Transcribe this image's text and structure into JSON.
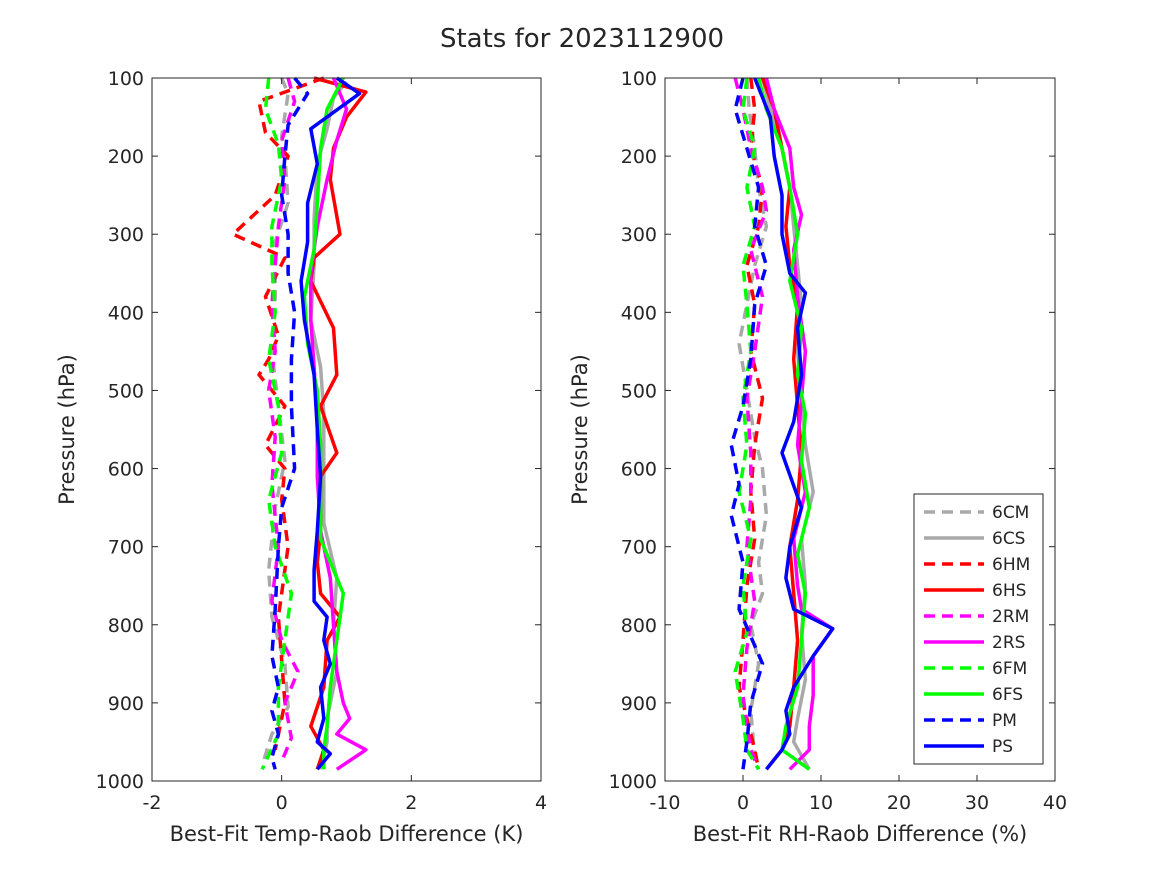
{
  "chart_data": [
    {
      "type": "line",
      "title": "Stats for 2023112900",
      "xlabel": "Best-Fit Temp-Raob Difference (K)",
      "ylabel": "Pressure (hPa)",
      "xlim": [
        -2,
        4
      ],
      "ylim": [
        1000,
        100
      ],
      "xticks": [
        "-2",
        "0",
        "2",
        "4"
      ],
      "yticks": [
        "100",
        "200",
        "300",
        "400",
        "500",
        "600",
        "700",
        "800",
        "900",
        "1000"
      ],
      "grid": false,
      "series": [
        {
          "name": "6CM",
          "color": "#a9a9a9",
          "dash": true,
          "x": [
            0.0,
            0.1,
            0.0,
            0.05,
            0.1,
            -0.1,
            -0.1,
            -0.15,
            -0.05,
            0.05,
            -0.1,
            -0.2,
            -0.15,
            0.05,
            0.1,
            -0.15,
            -0.3
          ],
          "y": [
            100,
            120,
            175,
            200,
            260,
            310,
            380,
            450,
            520,
            590,
            650,
            730,
            790,
            850,
            905,
            940,
            980
          ]
        },
        {
          "name": "6CS",
          "color": "#a9a9a9",
          "dash": false,
          "x": [
            1.0,
            0.8,
            0.7,
            0.55,
            0.5,
            0.5,
            0.45,
            0.6,
            0.65,
            0.65,
            0.65,
            0.85,
            0.8,
            0.85,
            0.7,
            0.7,
            0.6
          ],
          "y": [
            105,
            125,
            165,
            210,
            280,
            340,
            410,
            470,
            530,
            600,
            670,
            740,
            800,
            860,
            920,
            950,
            985
          ]
        },
        {
          "name": "6HM",
          "color": "#ff0000",
          "dash": true,
          "x": [
            0.65,
            -0.35,
            -0.25,
            0.1,
            -0.1,
            -0.75,
            0.05,
            -0.25,
            -0.05,
            -0.2,
            -0.35,
            0.05,
            -0.25,
            0.05,
            0.0,
            0.1,
            -0.05,
            0.05,
            -0.1
          ],
          "y": [
            100,
            130,
            170,
            200,
            250,
            300,
            330,
            380,
            430,
            460,
            480,
            520,
            570,
            600,
            640,
            700,
            790,
            900,
            960
          ]
        },
        {
          "name": "6HS",
          "color": "#ff0000",
          "dash": false,
          "x": [
            0.5,
            1.3,
            1.0,
            0.8,
            0.75,
            0.9,
            0.5,
            0.45,
            0.8,
            0.85,
            0.6,
            0.85,
            0.6,
            0.6,
            0.55,
            0.6,
            0.9,
            0.7,
            0.65,
            0.45,
            0.65,
            0.55
          ],
          "y": [
            100,
            118,
            150,
            190,
            230,
            300,
            330,
            360,
            420,
            480,
            520,
            580,
            610,
            680,
            720,
            760,
            790,
            820,
            880,
            930,
            960,
            985
          ]
        },
        {
          "name": "2RM",
          "color": "#ff00ff",
          "dash": true,
          "x": [
            0.1,
            0.2,
            0.0,
            0.05,
            -0.05,
            -0.1,
            -0.15,
            -0.1,
            -0.2,
            -0.1,
            -0.15,
            -0.05,
            -0.15,
            0.0,
            0.25,
            0.05,
            0.15,
            0.0
          ],
          "y": [
            100,
            130,
            180,
            230,
            290,
            340,
            390,
            450,
            500,
            560,
            620,
            700,
            770,
            820,
            860,
            900,
            945,
            975
          ]
        },
        {
          "name": "2RS",
          "color": "#ff00ff",
          "dash": false,
          "x": [
            0.8,
            1.0,
            0.85,
            0.7,
            0.55,
            0.45,
            0.45,
            0.5,
            0.55,
            0.55,
            0.6,
            0.75,
            0.8,
            0.85,
            0.95,
            1.05,
            0.85,
            1.3,
            0.85
          ],
          "y": [
            100,
            140,
            180,
            230,
            290,
            350,
            410,
            470,
            540,
            610,
            680,
            740,
            800,
            860,
            900,
            920,
            940,
            960,
            985
          ]
        },
        {
          "name": "6FM",
          "color": "#00ff00",
          "dash": true,
          "x": [
            -0.2,
            -0.25,
            -0.05,
            0.0,
            -0.15,
            -0.15,
            -0.1,
            -0.2,
            -0.05,
            0.0,
            -0.2,
            -0.1,
            0.15,
            0.05,
            -0.05,
            -0.05,
            -0.3
          ],
          "y": [
            100,
            140,
            185,
            230,
            290,
            340,
            400,
            460,
            520,
            580,
            640,
            700,
            760,
            820,
            880,
            940,
            985
          ]
        },
        {
          "name": "6FS",
          "color": "#00ff00",
          "dash": false,
          "x": [
            0.95,
            0.7,
            0.6,
            0.55,
            0.5,
            0.35,
            0.4,
            0.55,
            0.6,
            0.6,
            0.6,
            0.8,
            0.95,
            0.85,
            0.75,
            0.7,
            0.65,
            0.65
          ],
          "y": [
            100,
            140,
            190,
            260,
            320,
            380,
            440,
            500,
            570,
            630,
            690,
            730,
            760,
            820,
            880,
            930,
            960,
            985
          ]
        },
        {
          "name": "PM",
          "color": "#0000ff",
          "dash": true,
          "x": [
            0.2,
            0.4,
            0.1,
            0.05,
            0.0,
            0.1,
            0.1,
            0.2,
            0.15,
            0.15,
            0.2,
            0.0,
            -0.05,
            -0.1,
            -0.15,
            -0.05,
            -0.15,
            -0.05,
            -0.15,
            -0.1
          ],
          "y": [
            100,
            120,
            160,
            200,
            250,
            300,
            350,
            400,
            460,
            520,
            600,
            650,
            700,
            780,
            840,
            880,
            910,
            940,
            970,
            985
          ]
        },
        {
          "name": "PS",
          "color": "#0000ff",
          "dash": false,
          "x": [
            0.85,
            1.2,
            0.45,
            0.55,
            0.4,
            0.4,
            0.3,
            0.35,
            0.5,
            0.55,
            0.6,
            0.55,
            0.5,
            0.5,
            0.7,
            0.65,
            0.75,
            0.6,
            0.65,
            0.55,
            0.75,
            0.55
          ],
          "y": [
            100,
            120,
            165,
            210,
            260,
            310,
            360,
            410,
            480,
            550,
            610,
            680,
            730,
            770,
            790,
            820,
            850,
            880,
            920,
            950,
            965,
            985
          ]
        }
      ]
    },
    {
      "type": "line",
      "xlabel": "Best-Fit RH-Raob Difference (%)",
      "ylabel": "Pressure (hPa)",
      "xlim": [
        -10,
        40
      ],
      "ylim": [
        1000,
        100
      ],
      "xticks": [
        "-10",
        "0",
        "10",
        "20",
        "30",
        "40"
      ],
      "yticks": [
        "100",
        "200",
        "300",
        "400",
        "500",
        "600",
        "700",
        "800",
        "900",
        "1000"
      ],
      "grid": false,
      "legend_position": "bottom-right",
      "series": [
        {
          "name": "6CM",
          "color": "#a9a9a9",
          "dash": true,
          "x": [
            0.5,
            0.8,
            1.5,
            2.0,
            3.0,
            1.5,
            0.5,
            -0.5,
            0.5,
            1.5,
            2.5,
            3.0,
            2.0,
            2.5,
            1.0,
            2.0,
            1.0,
            1.5
          ],
          "y": [
            100,
            140,
            190,
            240,
            290,
            340,
            390,
            440,
            500,
            560,
            600,
            660,
            720,
            760,
            800,
            850,
            910,
            970
          ]
        },
        {
          "name": "6CS",
          "color": "#a9a9a9",
          "dash": false,
          "x": [
            2.5,
            3.5,
            5.0,
            6.0,
            6.5,
            7.0,
            7.5,
            7.0,
            7.5,
            8.0,
            9.0,
            7.5,
            8.0,
            7.5,
            8.0,
            7.0,
            6.5,
            8.5
          ],
          "y": [
            100,
            140,
            190,
            240,
            290,
            340,
            390,
            450,
            510,
            570,
            630,
            690,
            750,
            810,
            870,
            920,
            950,
            985
          ]
        },
        {
          "name": "6HM",
          "color": "#ff0000",
          "dash": true,
          "x": [
            1.0,
            1.5,
            1.0,
            2.5,
            2.0,
            0.5,
            1.5,
            1.0,
            2.5,
            1.5,
            1.0,
            1.5,
            0.5,
            0.0,
            -0.5,
            0.5,
            1.5,
            2.0
          ],
          "y": [
            100,
            140,
            190,
            240,
            290,
            340,
            390,
            450,
            510,
            570,
            630,
            690,
            750,
            820,
            880,
            920,
            960,
            985
          ]
        },
        {
          "name": "6HS",
          "color": "#ff0000",
          "dash": false,
          "x": [
            2.5,
            4.0,
            5.0,
            6.0,
            5.5,
            6.0,
            7.0,
            6.5,
            7.0,
            7.5,
            7.0,
            6.0,
            6.5,
            7.0,
            6.5,
            6.0,
            5.0,
            3.0
          ],
          "y": [
            100,
            140,
            190,
            240,
            290,
            340,
            390,
            460,
            520,
            580,
            640,
            700,
            760,
            820,
            880,
            930,
            960,
            985
          ]
        },
        {
          "name": "2RM",
          "color": "#ff00ff",
          "dash": true,
          "x": [
            -1.0,
            0.0,
            1.0,
            2.5,
            3.0,
            1.0,
            2.5,
            1.5,
            0.5,
            1.0,
            1.0,
            0.5,
            1.5,
            0.5,
            0.0,
            0.5,
            1.0,
            2.0
          ],
          "y": [
            100,
            140,
            190,
            240,
            270,
            320,
            380,
            450,
            510,
            580,
            640,
            700,
            770,
            830,
            890,
            930,
            960,
            985
          ]
        },
        {
          "name": "2RS",
          "color": "#ff00ff",
          "dash": false,
          "x": [
            3.0,
            4.0,
            6.0,
            6.5,
            7.5,
            6.5,
            7.0,
            8.0,
            7.5,
            7.0,
            8.0,
            6.5,
            7.0,
            7.5,
            11.5,
            9.0,
            9.0,
            8.5,
            8.5,
            6.0
          ],
          "y": [
            100,
            140,
            190,
            240,
            275,
            320,
            380,
            450,
            510,
            570,
            630,
            690,
            750,
            780,
            805,
            840,
            890,
            930,
            960,
            985
          ]
        },
        {
          "name": "6FM",
          "color": "#00ff00",
          "dash": true,
          "x": [
            0.5,
            0.0,
            1.5,
            0.5,
            1.5,
            0.0,
            0.5,
            1.0,
            0.0,
            0.5,
            -0.5,
            1.0,
            0.0,
            0.5,
            -1.0,
            0.0,
            0.5,
            2.0
          ],
          "y": [
            100,
            140,
            190,
            240,
            290,
            340,
            390,
            450,
            510,
            570,
            630,
            690,
            750,
            810,
            860,
            920,
            960,
            985
          ]
        },
        {
          "name": "6FS",
          "color": "#00ff00",
          "dash": false,
          "x": [
            2.0,
            3.0,
            5.0,
            6.0,
            7.0,
            6.0,
            7.5,
            7.0,
            8.0,
            7.5,
            8.5,
            7.0,
            8.0,
            7.5,
            7.0,
            5.5,
            5.0,
            8.5
          ],
          "y": [
            100,
            140,
            190,
            240,
            300,
            360,
            420,
            480,
            530,
            590,
            650,
            710,
            760,
            820,
            880,
            930,
            960,
            985
          ]
        },
        {
          "name": "PM",
          "color": "#0000ff",
          "dash": true,
          "x": [
            0.0,
            -1.0,
            0.5,
            2.0,
            1.5,
            3.0,
            1.5,
            1.0,
            0.0,
            -1.5,
            -0.5,
            -1.5,
            0.0,
            -0.5,
            2.5,
            1.0,
            0.5,
            0.0
          ],
          "y": [
            100,
            140,
            190,
            240,
            290,
            340,
            390,
            460,
            520,
            570,
            620,
            660,
            720,
            780,
            850,
            900,
            950,
            985
          ]
        },
        {
          "name": "PS",
          "color": "#0000ff",
          "dash": false,
          "x": [
            1.5,
            3.5,
            4.0,
            5.0,
            5.0,
            6.0,
            8.0,
            7.0,
            7.5,
            6.5,
            5.0,
            7.5,
            6.0,
            5.5,
            6.5,
            11.5,
            9.0,
            6.5,
            5.5,
            6.0,
            5.0,
            3.0
          ],
          "y": [
            100,
            150,
            200,
            250,
            300,
            350,
            375,
            420,
            480,
            540,
            580,
            650,
            700,
            740,
            780,
            805,
            840,
            880,
            910,
            940,
            960,
            985
          ]
        }
      ]
    }
  ]
}
